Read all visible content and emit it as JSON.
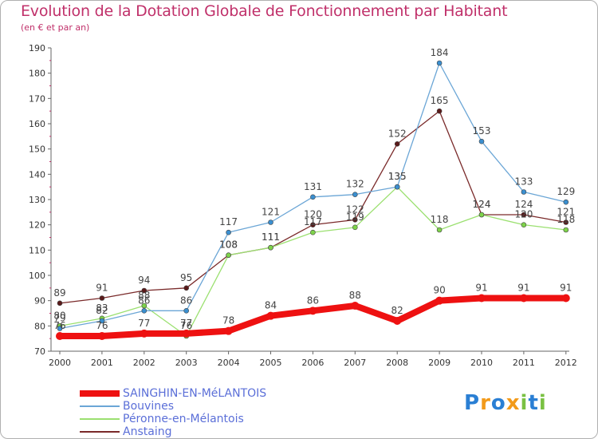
{
  "title": "Evolution de la Dotation Globale de Fonctionnement par Habitant",
  "subtitle": "(en € et par an)",
  "colors": {
    "title": "#c0306a",
    "axis": "#666666",
    "grid_tick": "#c0306a",
    "legend_text": "#5b6fd8"
  },
  "chart_data": {
    "type": "line",
    "title": "Evolution de la Dotation Globale de Fonctionnement par Habitant",
    "subtitle": "(en € et par an)",
    "xlabel": "",
    "ylabel": "",
    "x": [
      "2000",
      "2001",
      "2002",
      "2003",
      "2004",
      "2005",
      "2006",
      "2007",
      "2008",
      "2009",
      "2010",
      "2011",
      "2012"
    ],
    "ylim": [
      70,
      190
    ],
    "yticks": [
      70,
      80,
      90,
      100,
      110,
      120,
      130,
      140,
      150,
      160,
      170,
      180,
      190
    ],
    "grid": false,
    "legend_position": "bottom-left",
    "series": [
      {
        "name": "SAINGHIN-EN-MéLANTOIS",
        "color": "#ee1111",
        "marker": "#ee1111",
        "width": 8,
        "values": [
          76,
          76,
          77,
          77,
          78,
          84,
          86,
          88,
          82,
          90,
          91,
          91,
          91
        ]
      },
      {
        "name": "Bouvines",
        "color": "#6ba6d6",
        "marker": "#3a8fd0",
        "width": 1.3,
        "values": [
          79,
          82,
          86,
          86,
          117,
          121,
          131,
          132,
          135,
          184,
          153,
          133,
          129
        ]
      },
      {
        "name": "Péronne-en-Mélantois",
        "color": "#9be070",
        "marker": "#7ed34a",
        "width": 1.3,
        "values": [
          80,
          83,
          88,
          76,
          108,
          111,
          117,
          119,
          135,
          118,
          124,
          120,
          118
        ]
      },
      {
        "name": "Anstaing",
        "color": "#7a2a2a",
        "marker": "#5a1a1a",
        "width": 1.3,
        "values": [
          89,
          91,
          94,
          95,
          108,
          111,
          120,
          122,
          152,
          165,
          124,
          124,
          121
        ]
      }
    ]
  },
  "logo": {
    "text": [
      "P",
      "r",
      "o",
      "x",
      "i",
      "t",
      "i"
    ],
    "colors": [
      "#2a7fd4",
      "#f29a1a",
      "#2a7fd4",
      "#f29a1a",
      "#7ac143",
      "#2a7fd4",
      "#7ac143"
    ]
  }
}
